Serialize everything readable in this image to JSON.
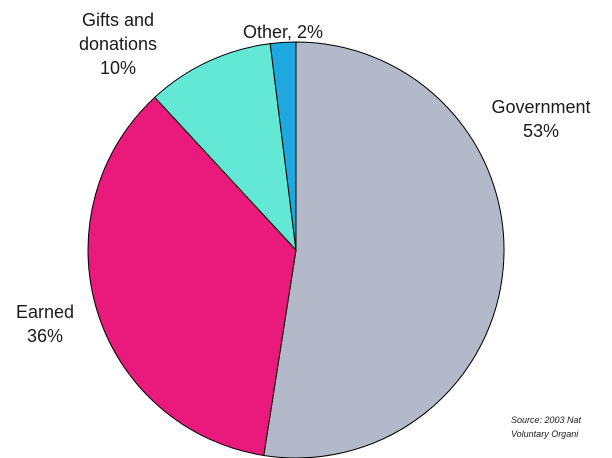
{
  "chart_data": {
    "type": "pie",
    "title": "",
    "slices": [
      {
        "name": "Government",
        "value": 53,
        "label_lines": [
          "Government",
          "53%"
        ],
        "color": "#b3b9c8"
      },
      {
        "name": "Earned",
        "value": 36,
        "label_lines": [
          "Earned",
          "36%"
        ],
        "color": "#e91a7b"
      },
      {
        "name": "Gifts and donations",
        "value": 10,
        "label_lines": [
          "Gifts and",
          "donations",
          "10%"
        ],
        "color": "#63e8d6"
      },
      {
        "name": "Other",
        "value": 2,
        "label_lines": [
          "Other, 2%"
        ],
        "color": "#1fa8e0"
      }
    ],
    "source_lines": [
      "Source: 2003 Nat",
      "Voluntary Organi"
    ]
  }
}
